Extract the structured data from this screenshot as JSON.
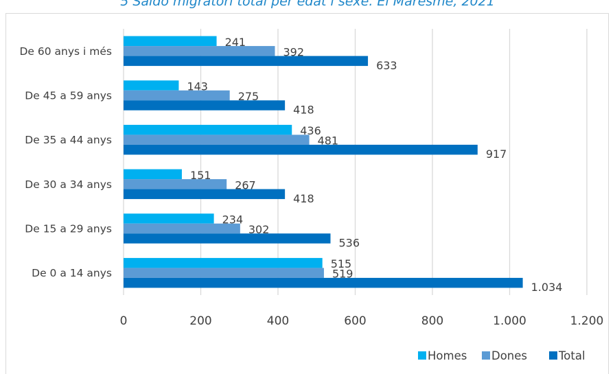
{
  "chart_data": {
    "type": "bar",
    "orientation": "horizontal",
    "title": "5 Saldo migratori total per edat i sexe. El Maresme, 2021",
    "categories": [
      "De 60 anys i més",
      "De 45 a 59 anys",
      "De 35 a 44 anys",
      "De 30 a 34 anys",
      "De 15 a 29 anys",
      "De 0 a 14 anys"
    ],
    "series": [
      {
        "name": "Homes",
        "color": "#00b0f0",
        "values": [
          241,
          143,
          436,
          151,
          234,
          515
        ],
        "labels": [
          "241",
          "143",
          "436",
          "151",
          "234",
          "515"
        ]
      },
      {
        "name": "Dones",
        "color": "#5b9bd5",
        "values": [
          392,
          275,
          481,
          267,
          302,
          519
        ],
        "labels": [
          "392",
          "275",
          "481",
          "267",
          "302",
          "519"
        ]
      },
      {
        "name": "Total",
        "color": "#0070c0",
        "values": [
          633,
          418,
          917,
          418,
          536,
          1034
        ],
        "labels": [
          "633",
          "418",
          "917",
          "418",
          "536",
          "1.034"
        ]
      }
    ],
    "xlim": [
      0,
      1200
    ],
    "xticks": [
      0,
      200,
      400,
      600,
      800,
      1000,
      1200
    ],
    "xtick_labels": [
      "0",
      "200",
      "400",
      "600",
      "800",
      "1.000",
      "1.200"
    ],
    "grid": "vertical",
    "legend": "bottom-right"
  }
}
